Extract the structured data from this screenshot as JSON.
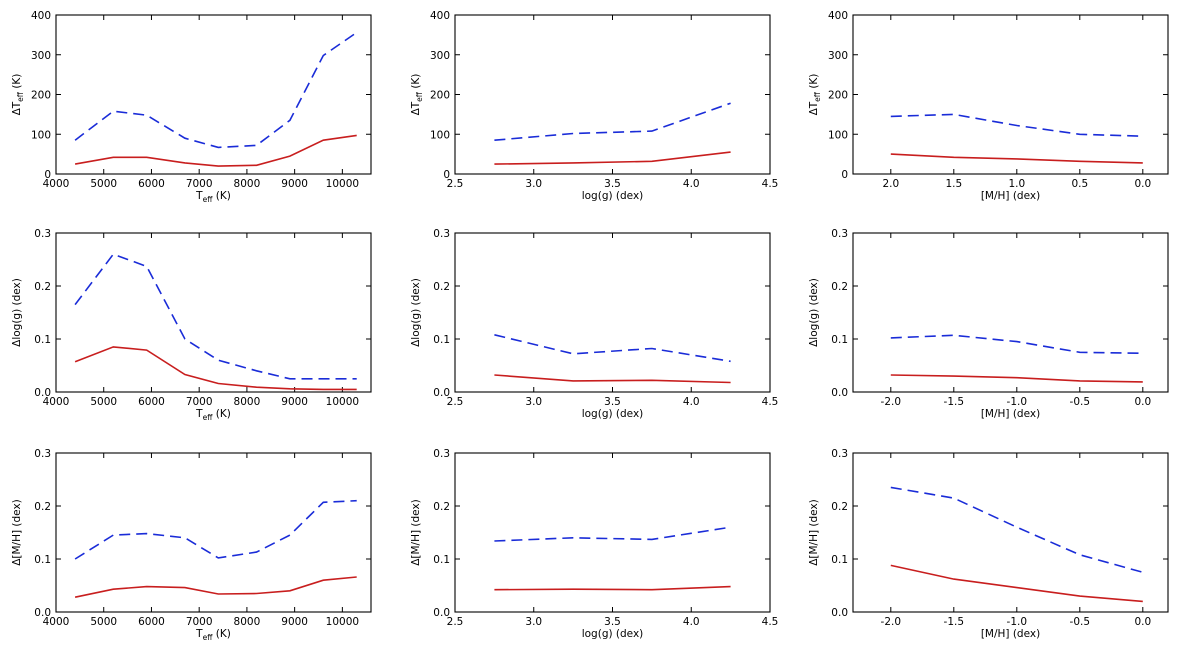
{
  "colors": {
    "dashed_series": "#1a2cd8",
    "solid_series": "#c81e1e",
    "axes": "#000000"
  },
  "chart_data": [
    {
      "type": "line",
      "xlabel": "T_eff (K)",
      "ylabel": "ΔT_eff (K)",
      "xlim": [
        4000,
        10600
      ],
      "ylim": [
        0,
        400
      ],
      "x_reversed": false,
      "xticks": [
        4000,
        5000,
        6000,
        7000,
        8000,
        9000,
        10000
      ],
      "xtick_labels": [
        "4000",
        "5000",
        "6000",
        "7000",
        "8000",
        "9000",
        "10000"
      ],
      "yticks": [
        0,
        100,
        200,
        300,
        400
      ],
      "ytick_labels": [
        "0",
        "100",
        "200",
        "300",
        "400"
      ],
      "x": [
        4400,
        5200,
        5900,
        6700,
        7400,
        8200,
        8900,
        9600,
        10300
      ],
      "series": [
        {
          "name": "dashed",
          "style": "dashed",
          "values": [
            85,
            158,
            148,
            90,
            67,
            72,
            135,
            298,
            356
          ]
        },
        {
          "name": "solid",
          "style": "solid",
          "values": [
            25,
            42,
            42,
            28,
            20,
            22,
            45,
            85,
            97
          ]
        }
      ]
    },
    {
      "type": "line",
      "xlabel": "log(g) (dex)",
      "ylabel": "ΔT_eff (K)",
      "xlim": [
        2.5,
        4.5
      ],
      "ylim": [
        0,
        400
      ],
      "x_reversed": false,
      "xticks": [
        2.5,
        3.0,
        3.5,
        4.0,
        4.5
      ],
      "xtick_labels": [
        "2.5",
        "3.0",
        "3.5",
        "4.0",
        "4.5"
      ],
      "yticks": [
        0,
        100,
        200,
        300,
        400
      ],
      "ytick_labels": [
        "0",
        "100",
        "200",
        "300",
        "400"
      ],
      "x": [
        2.75,
        3.25,
        3.75,
        4.25
      ],
      "series": [
        {
          "name": "dashed",
          "style": "dashed",
          "values": [
            85,
            102,
            108,
            178
          ]
        },
        {
          "name": "solid",
          "style": "solid",
          "values": [
            25,
            28,
            32,
            55
          ]
        }
      ]
    },
    {
      "type": "line",
      "xlabel": "[M/H] (dex)",
      "ylabel": "ΔT_eff (K)",
      "xlim": [
        2.3,
        -0.2
      ],
      "ylim": [
        0,
        400
      ],
      "x_reversed": true,
      "xticks": [
        2.0,
        1.5,
        1.0,
        0.5,
        0.0
      ],
      "xtick_labels": [
        "2.0",
        "1.5",
        "1.0",
        "0.5",
        "0.0"
      ],
      "yticks": [
        0,
        100,
        200,
        300,
        400
      ],
      "ytick_labels": [
        "0",
        "100",
        "200",
        "300",
        "400"
      ],
      "x": [
        2.0,
        1.5,
        1.0,
        0.5,
        0.0
      ],
      "series": [
        {
          "name": "dashed",
          "style": "dashed",
          "values": [
            145,
            150,
            122,
            100,
            95
          ]
        },
        {
          "name": "solid",
          "style": "solid",
          "values": [
            50,
            42,
            38,
            32,
            28
          ]
        }
      ]
    },
    {
      "type": "line",
      "xlabel": "T_eff (K)",
      "ylabel": "Δlog(g) (dex)",
      "xlim": [
        4000,
        10600
      ],
      "ylim": [
        0,
        0.3
      ],
      "x_reversed": false,
      "xticks": [
        4000,
        5000,
        6000,
        7000,
        8000,
        9000,
        10000
      ],
      "xtick_labels": [
        "4000",
        "5000",
        "6000",
        "7000",
        "8000",
        "9000",
        "10000"
      ],
      "yticks": [
        0,
        0.1,
        0.2,
        0.3
      ],
      "ytick_labels": [
        "0.0",
        "0.1",
        "0.2",
        "0.3"
      ],
      "x": [
        4400,
        5200,
        5900,
        6700,
        7400,
        8200,
        8900,
        9600,
        10300
      ],
      "series": [
        {
          "name": "dashed",
          "style": "dashed",
          "values": [
            0.165,
            0.26,
            0.237,
            0.1,
            0.06,
            0.04,
            0.025,
            0.025,
            0.025
          ]
        },
        {
          "name": "solid",
          "style": "solid",
          "values": [
            0.057,
            0.085,
            0.079,
            0.033,
            0.016,
            0.009,
            0.006,
            0.005,
            0.005
          ]
        }
      ]
    },
    {
      "type": "line",
      "xlabel": "log(g) (dex)",
      "ylabel": "Δlog(g) (dex)",
      "xlim": [
        2.5,
        4.5
      ],
      "ylim": [
        0,
        0.3
      ],
      "x_reversed": false,
      "xticks": [
        2.5,
        3.0,
        3.5,
        4.0,
        4.5
      ],
      "xtick_labels": [
        "2.5",
        "3.0",
        "3.5",
        "4.0",
        "4.5"
      ],
      "yticks": [
        0,
        0.1,
        0.2,
        0.3
      ],
      "ytick_labels": [
        "0.0",
        "0.1",
        "0.2",
        "0.3"
      ],
      "x": [
        2.75,
        3.25,
        3.75,
        4.25
      ],
      "series": [
        {
          "name": "dashed",
          "style": "dashed",
          "values": [
            0.108,
            0.072,
            0.082,
            0.058
          ]
        },
        {
          "name": "solid",
          "style": "solid",
          "values": [
            0.032,
            0.021,
            0.022,
            0.018
          ]
        }
      ]
    },
    {
      "type": "line",
      "xlabel": "[M/H] (dex)",
      "ylabel": "Δlog(g) (dex)",
      "xlim": [
        -2.3,
        0.2
      ],
      "ylim": [
        0,
        0.3
      ],
      "x_reversed": false,
      "xticks": [
        -2.0,
        -1.5,
        -1.0,
        -0.5,
        0.0
      ],
      "xtick_labels": [
        "-2.0",
        "-1.5",
        "-1.0",
        "-0.5",
        "0.0"
      ],
      "yticks": [
        0,
        0.1,
        0.2,
        0.3
      ],
      "ytick_labels": [
        "0.0",
        "0.1",
        "0.2",
        "0.3"
      ],
      "x": [
        -2.0,
        -1.5,
        -1.0,
        -0.5,
        0.0
      ],
      "series": [
        {
          "name": "dashed",
          "style": "dashed",
          "values": [
            0.102,
            0.107,
            0.095,
            0.075,
            0.073
          ]
        },
        {
          "name": "solid",
          "style": "solid",
          "values": [
            0.032,
            0.03,
            0.027,
            0.021,
            0.019
          ]
        }
      ]
    },
    {
      "type": "line",
      "xlabel": "T_eff (K)",
      "ylabel": "Δ[M/H] (dex)",
      "xlim": [
        4000,
        10600
      ],
      "ylim": [
        0,
        0.3
      ],
      "x_reversed": false,
      "xticks": [
        4000,
        5000,
        6000,
        7000,
        8000,
        9000,
        10000
      ],
      "xtick_labels": [
        "4000",
        "5000",
        "6000",
        "7000",
        "8000",
        "9000",
        "10000"
      ],
      "yticks": [
        0,
        0.1,
        0.2,
        0.3
      ],
      "ytick_labels": [
        "0.0",
        "0.1",
        "0.2",
        "0.3"
      ],
      "x": [
        4400,
        5200,
        5900,
        6700,
        7400,
        8200,
        8900,
        9600,
        10300
      ],
      "series": [
        {
          "name": "dashed",
          "style": "dashed",
          "values": [
            0.1,
            0.145,
            0.148,
            0.14,
            0.102,
            0.113,
            0.145,
            0.207,
            0.21
          ]
        },
        {
          "name": "solid",
          "style": "solid",
          "values": [
            0.028,
            0.043,
            0.048,
            0.046,
            0.034,
            0.035,
            0.04,
            0.06,
            0.066
          ]
        }
      ]
    },
    {
      "type": "line",
      "xlabel": "log(g) (dex)",
      "ylabel": "Δ[M/H] (dex)",
      "xlim": [
        2.5,
        4.5
      ],
      "ylim": [
        0,
        0.3
      ],
      "x_reversed": false,
      "xticks": [
        2.5,
        3.0,
        3.5,
        4.0,
        4.5
      ],
      "xtick_labels": [
        "2.5",
        "3.0",
        "3.5",
        "4.0",
        "4.5"
      ],
      "yticks": [
        0,
        0.1,
        0.2,
        0.3
      ],
      "ytick_labels": [
        "0.0",
        "0.1",
        "0.2",
        "0.3"
      ],
      "x": [
        2.75,
        3.25,
        3.75,
        4.25
      ],
      "series": [
        {
          "name": "dashed",
          "style": "dashed",
          "values": [
            0.134,
            0.14,
            0.137,
            0.16
          ]
        },
        {
          "name": "solid",
          "style": "solid",
          "values": [
            0.042,
            0.043,
            0.042,
            0.048
          ]
        }
      ]
    },
    {
      "type": "line",
      "xlabel": "[M/H] (dex)",
      "ylabel": "Δ[M/H] (dex)",
      "xlim": [
        -2.3,
        0.2
      ],
      "ylim": [
        0,
        0.3
      ],
      "x_reversed": false,
      "xticks": [
        -2.0,
        -1.5,
        -1.0,
        -0.5,
        0.0
      ],
      "xtick_labels": [
        "-2.0",
        "-1.5",
        "-1.0",
        "-0.5",
        "0.0"
      ],
      "yticks": [
        0,
        0.1,
        0.2,
        0.3
      ],
      "ytick_labels": [
        "0.0",
        "0.1",
        "0.2",
        "0.3"
      ],
      "x": [
        -2.0,
        -1.5,
        -1.0,
        -0.5,
        0.0
      ],
      "series": [
        {
          "name": "dashed",
          "style": "dashed",
          "values": [
            0.235,
            0.215,
            0.16,
            0.108,
            0.075
          ]
        },
        {
          "name": "solid",
          "style": "solid",
          "values": [
            0.088,
            0.062,
            0.046,
            0.03,
            0.02
          ]
        }
      ]
    }
  ]
}
